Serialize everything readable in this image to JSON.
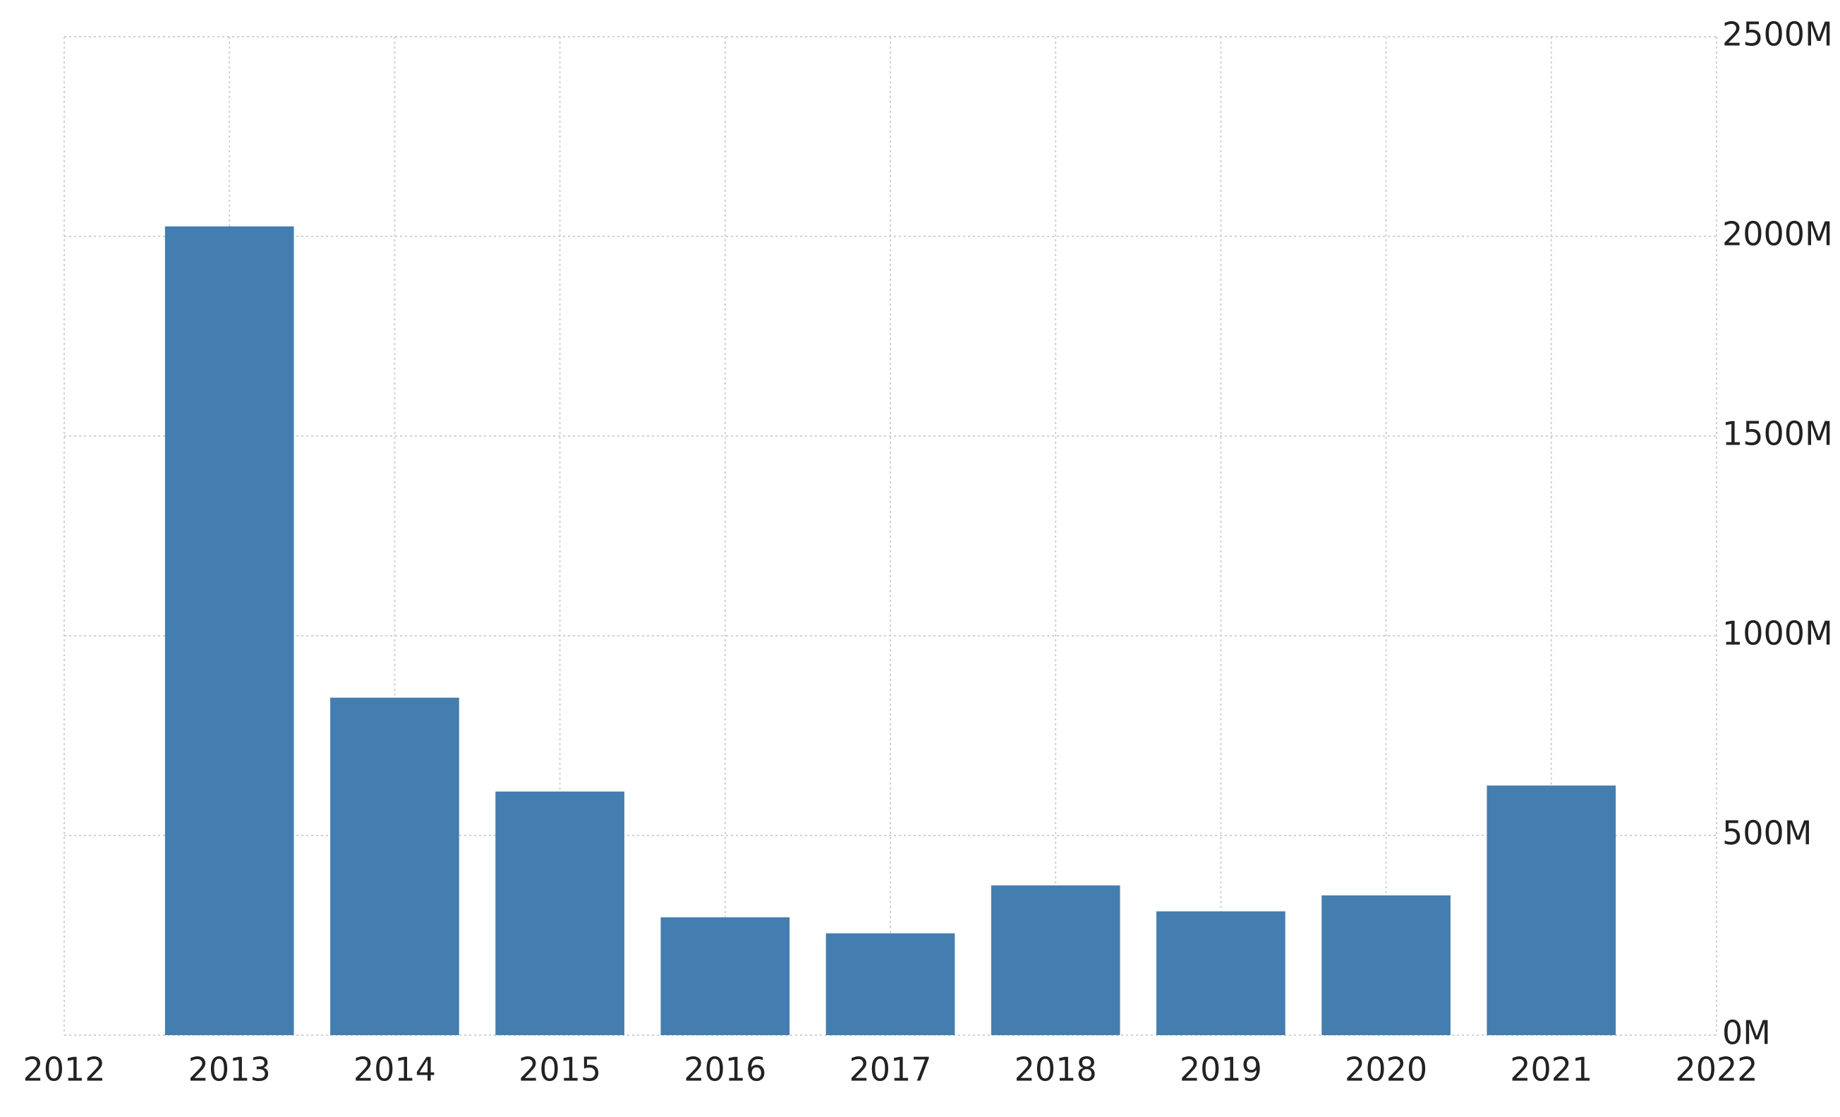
{
  "chart_data": {
    "type": "bar",
    "x": [
      2013,
      2014,
      2015,
      2016,
      2017,
      2018,
      2019,
      2020,
      2021
    ],
    "values": [
      2025,
      845,
      610,
      295,
      255,
      375,
      310,
      350,
      625
    ],
    "color": "#447eb0",
    "xlim": [
      2012,
      2022
    ],
    "xticks": [
      2012,
      2013,
      2014,
      2015,
      2016,
      2017,
      2018,
      2019,
      2020,
      2021,
      2022
    ],
    "ylim": [
      0,
      2500
    ],
    "yticks": [
      {
        "value": 0,
        "label": "0M"
      },
      {
        "value": 500,
        "label": "500M"
      },
      {
        "value": 1000,
        "label": "1000M"
      },
      {
        "value": 1500,
        "label": "1500M"
      },
      {
        "value": 2000,
        "label": "2000M"
      },
      {
        "value": 2500,
        "label": "2500M"
      }
    ],
    "grid": true
  }
}
